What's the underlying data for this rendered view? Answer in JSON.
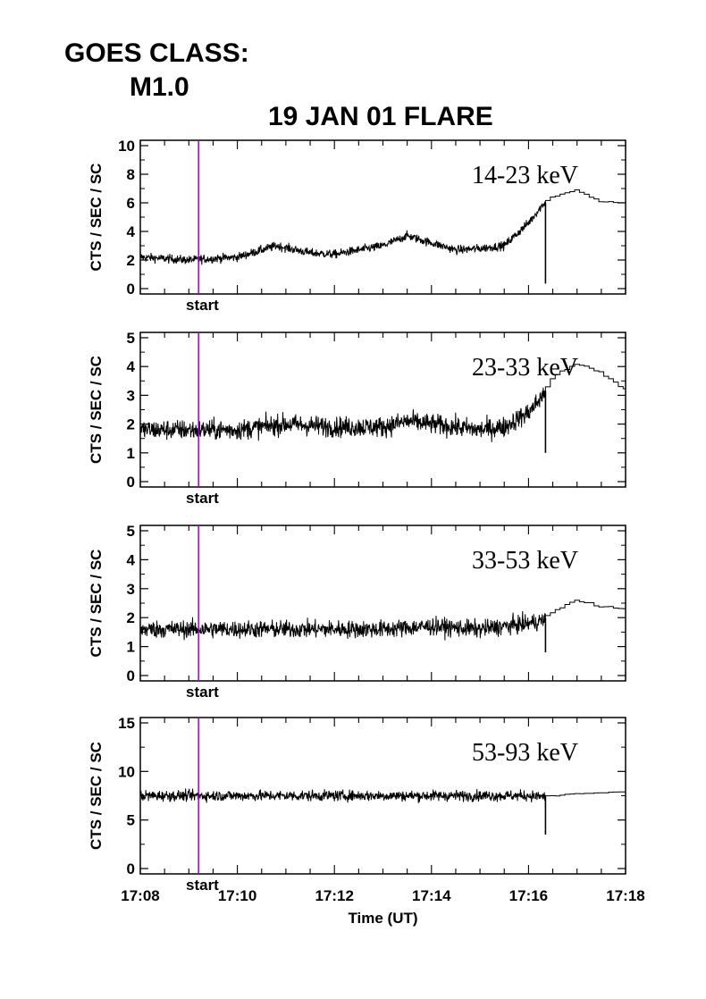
{
  "header": {
    "goes_label": "GOES CLASS:",
    "goes_value": "M1.0",
    "title": "19 JAN 01 FLARE"
  },
  "colors": {
    "start_marker": "#a000c8",
    "trace": "#000000",
    "axes": "#000000"
  },
  "chart_data": [
    {
      "type": "line",
      "band": "14-23 keV",
      "ylabel": "CTS / SEC / SC",
      "ylim": [
        0,
        10
      ],
      "yticks": [
        "0",
        "2",
        "4",
        "6",
        "8",
        "10"
      ],
      "xlim": [
        "17:08",
        "17:18"
      ],
      "marker_label": "start",
      "start_time": "17:09.2",
      "series": [
        {
          "x": [
            "17:08",
            "17:09",
            "17:10",
            "17:10.8",
            "17:11.5",
            "17:12",
            "17:13",
            "17:13.5",
            "17:14",
            "17:14.5",
            "17:15",
            "17:15.5",
            "17:16",
            "17:16.3",
            "17:16.5",
            "17:17",
            "17:17.5",
            "17:18"
          ],
          "values": [
            2.2,
            2.0,
            2.2,
            3.0,
            2.5,
            2.4,
            3.0,
            3.7,
            3.2,
            2.7,
            2.8,
            3.0,
            4.6,
            5.9,
            6.4,
            6.9,
            6.1,
            6.0
          ]
        }
      ]
    },
    {
      "type": "line",
      "band": "23-33 keV",
      "ylabel": "CTS / SEC / SC",
      "ylim": [
        0,
        5
      ],
      "yticks": [
        "0",
        "1",
        "2",
        "3",
        "4",
        "5"
      ],
      "xlim": [
        "17:08",
        "17:18"
      ],
      "marker_label": "start",
      "start_time": "17:09.2",
      "series": [
        {
          "x": [
            "17:08",
            "17:09",
            "17:10",
            "17:11",
            "17:12",
            "17:13",
            "17:13.5",
            "17:14",
            "17:15",
            "17:15.5",
            "17:16",
            "17:16.3",
            "17:16.5",
            "17:17",
            "17:17.5",
            "17:18"
          ],
          "values": [
            1.8,
            1.8,
            1.8,
            2.0,
            1.9,
            1.9,
            2.1,
            2.0,
            1.8,
            1.9,
            2.4,
            3.0,
            3.6,
            4.1,
            3.8,
            3.2
          ]
        }
      ]
    },
    {
      "type": "line",
      "band": "33-53 keV",
      "ylabel": "CTS / SEC / SC",
      "ylim": [
        0,
        5
      ],
      "yticks": [
        "0",
        "1",
        "2",
        "3",
        "4",
        "5"
      ],
      "xlim": [
        "17:08",
        "17:18"
      ],
      "marker_label": "start",
      "start_time": "17:09.2",
      "series": [
        {
          "x": [
            "17:08",
            "17:09",
            "17:10",
            "17:11",
            "17:12",
            "17:13",
            "17:14",
            "17:15",
            "17:16",
            "17:16.3",
            "17:16.5",
            "17:17",
            "17:17.5",
            "17:18"
          ],
          "values": [
            1.6,
            1.6,
            1.6,
            1.6,
            1.6,
            1.6,
            1.7,
            1.6,
            1.8,
            1.9,
            2.2,
            2.6,
            2.4,
            2.3
          ]
        }
      ]
    },
    {
      "type": "line",
      "band": "53-93 keV",
      "ylabel": "CTS / SEC / SC",
      "ylim": [
        0,
        15
      ],
      "yticks": [
        "0",
        "5",
        "10",
        "15"
      ],
      "xlim": [
        "17:08",
        "17:18"
      ],
      "xticks": [
        "17:08",
        "17:10",
        "17:12",
        "17:14",
        "17:16",
        "17:18"
      ],
      "xlabel": "Time (UT)",
      "marker_label": "start",
      "start_time": "17:09.2",
      "series": [
        {
          "x": [
            "17:08",
            "17:10",
            "17:12",
            "17:14",
            "17:16",
            "17:16.3",
            "17:17",
            "17:18"
          ],
          "values": [
            7.5,
            7.5,
            7.5,
            7.5,
            7.5,
            7.4,
            7.7,
            7.9
          ]
        }
      ]
    }
  ]
}
